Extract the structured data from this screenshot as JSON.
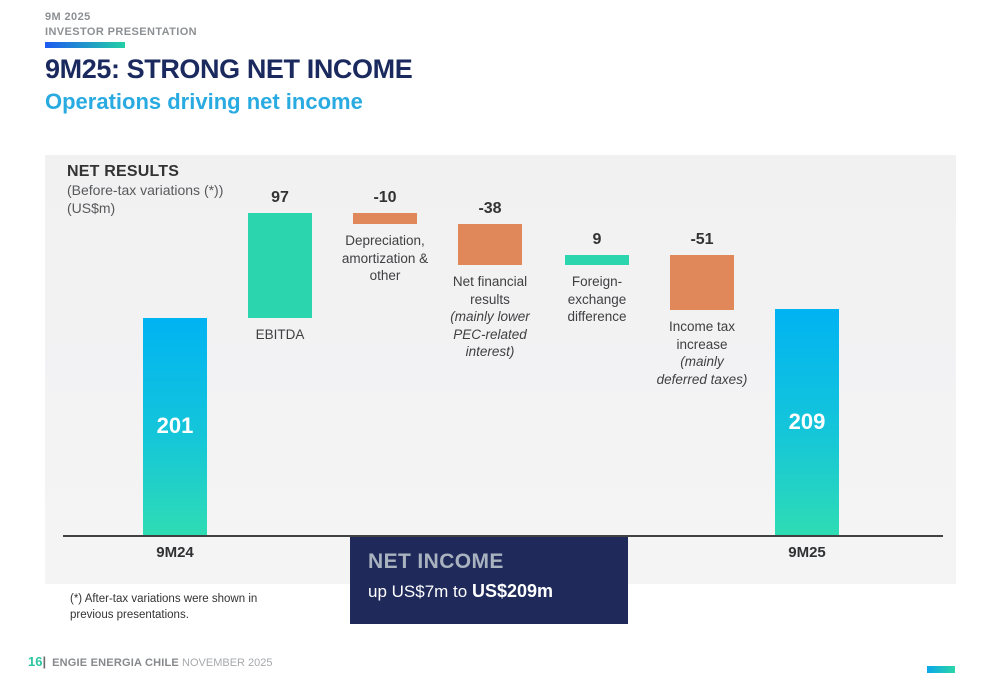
{
  "header": {
    "eyebrow": "9M 2025\nINVESTOR PRESENTATION",
    "title": "9M25: STRONG NET INCOME",
    "subtitle": "Operations driving net income"
  },
  "chart_header": {
    "title": "NET RESULTS",
    "subtitle": "(Before-tax variations (*))\n(US$m)"
  },
  "chart_data": {
    "type": "bar",
    "subtype": "waterfall",
    "title": "NET RESULTS",
    "note": "(Before-tax variations (*))",
    "unit": "US$m",
    "ylabel": "US$m",
    "grid": false,
    "legend": false,
    "bars": [
      {
        "name": "9m24",
        "label": "9M24",
        "value": 201,
        "display": "201",
        "kind": "total",
        "start": 0,
        "end": 201
      },
      {
        "name": "ebitda",
        "label": "EBITDA",
        "value": 97,
        "display": "97",
        "kind": "increase",
        "start": 201,
        "end": 298
      },
      {
        "name": "depreciation",
        "label": "Depreciation,\namortization &\nother",
        "value": -10,
        "display": "-10",
        "kind": "decrease",
        "start": 298,
        "end": 288
      },
      {
        "name": "net-financial-results",
        "label": "Net financial\nresults",
        "sublabel": "(mainly lower\nPEC-related\ninterest)",
        "value": -38,
        "display": "-38",
        "kind": "decrease",
        "start": 288,
        "end": 250
      },
      {
        "name": "fx-difference",
        "label": "Foreign-\nexchange\ndifference",
        "value": 9,
        "display": "9",
        "kind": "increase",
        "start": 250,
        "end": 259
      },
      {
        "name": "income-tax",
        "label": "Income tax\nincrease",
        "sublabel": "(mainly\ndeferred taxes)",
        "value": -51,
        "display": "-51",
        "kind": "decrease",
        "start": 259,
        "end": 208
      },
      {
        "name": "9m25",
        "label": "9M25",
        "value": 209,
        "display": "209",
        "kind": "total",
        "start": 0,
        "end": 209
      }
    ],
    "colors": {
      "total_gradient_top": "#00B3F2",
      "total_gradient_bottom": "#2EDCB4",
      "increase": "#2BD6AE",
      "decrease": "#E0885A",
      "axis": "#3F4142"
    }
  },
  "callout": {
    "title": "NET INCOME",
    "prefix": "up US$7m",
    "mid": " to ",
    "value": "US$209m"
  },
  "footnote": "(*) After-tax variations were shown in\nprevious presentations.",
  "footer": {
    "page": "16",
    "separator": "|",
    "brand": "ENGIE ENERGIA CHILE",
    "date": "NOVEMBER 2025"
  }
}
